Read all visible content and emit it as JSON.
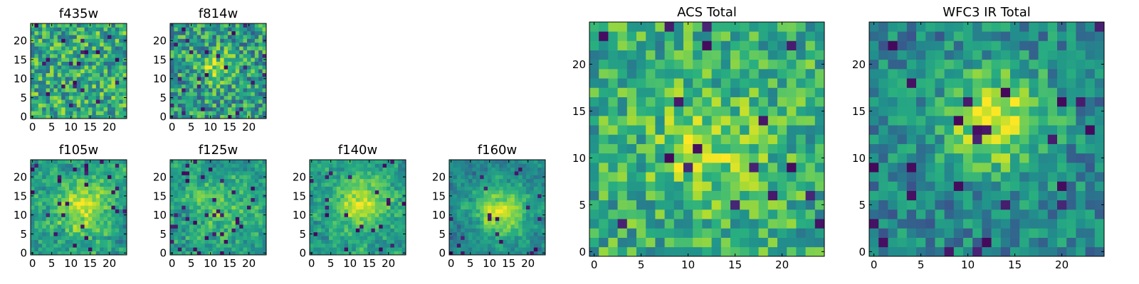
{
  "chart_data": [
    {
      "type": "heatmap",
      "title": "f435w",
      "xticks": [
        "0",
        "5",
        "10",
        "15",
        "20"
      ],
      "yticks": [
        "0",
        "5",
        "10",
        "15",
        "20"
      ],
      "xlim": [
        0,
        24
      ],
      "ylim": [
        0,
        24
      ],
      "colormap": "viridis",
      "grid": false
    },
    {
      "type": "heatmap",
      "title": "f814w",
      "xticks": [
        "0",
        "5",
        "10",
        "15",
        "20"
      ],
      "yticks": [
        "0",
        "5",
        "10",
        "15",
        "20"
      ],
      "xlim": [
        0,
        24
      ],
      "ylim": [
        0,
        24
      ],
      "colormap": "viridis",
      "grid": false
    },
    {
      "type": "heatmap",
      "title": "f105w",
      "xticks": [
        "0",
        "5",
        "10",
        "15",
        "20"
      ],
      "yticks": [
        "0",
        "5",
        "10",
        "15",
        "20"
      ],
      "xlim": [
        0,
        24
      ],
      "ylim": [
        0,
        24
      ],
      "colormap": "viridis",
      "grid": false
    },
    {
      "type": "heatmap",
      "title": "f125w",
      "xticks": [
        "0",
        "5",
        "10",
        "15",
        "20"
      ],
      "yticks": [
        "0",
        "5",
        "10",
        "15",
        "20"
      ],
      "xlim": [
        0,
        24
      ],
      "ylim": [
        0,
        24
      ],
      "colormap": "viridis",
      "grid": false
    },
    {
      "type": "heatmap",
      "title": "f140w",
      "xticks": [
        "0",
        "5",
        "10",
        "15",
        "20"
      ],
      "yticks": [
        "0",
        "5",
        "10",
        "15",
        "20"
      ],
      "xlim": [
        0,
        24
      ],
      "ylim": [
        0,
        24
      ],
      "colormap": "viridis",
      "grid": false
    },
    {
      "type": "heatmap",
      "title": "f160w",
      "xticks": [
        "0",
        "5",
        "10",
        "15",
        "20"
      ],
      "yticks": [
        "0",
        "5",
        "10",
        "15",
        "20"
      ],
      "xlim": [
        0,
        24
      ],
      "ylim": [
        0,
        24
      ],
      "colormap": "viridis",
      "grid": false
    },
    {
      "type": "heatmap",
      "title": "ACS Total",
      "xticks": [
        "0",
        "5",
        "10",
        "15",
        "20"
      ],
      "yticks": [
        "0",
        "5",
        "10",
        "15",
        "20"
      ],
      "xlim": [
        0,
        24
      ],
      "ylim": [
        0,
        24
      ],
      "colormap": "viridis",
      "grid": false
    },
    {
      "type": "heatmap",
      "title": "WFC3 IR Total",
      "xticks": [
        "0",
        "5",
        "10",
        "15",
        "20"
      ],
      "yticks": [
        "0",
        "5",
        "10",
        "15",
        "20"
      ],
      "xlim": [
        0,
        24
      ],
      "ylim": [
        0,
        24
      ],
      "colormap": "viridis",
      "grid": false
    }
  ],
  "colors": {
    "viridis_dark": "#440154",
    "viridis_mid": "#21918c",
    "viridis_bright": "#fde725",
    "axes_frame": "#000000"
  }
}
